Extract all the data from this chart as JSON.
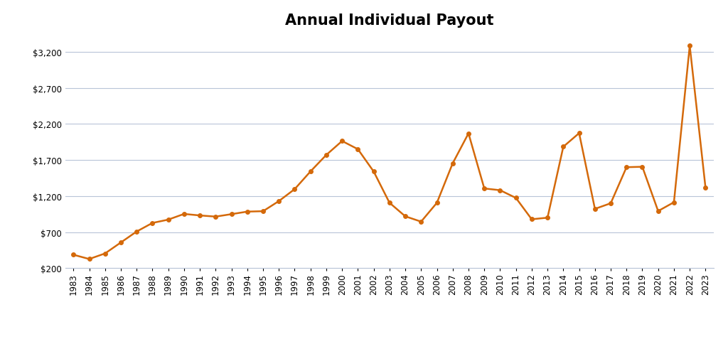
{
  "title": "Annual Individual Payout",
  "years": [
    1983,
    1984,
    1985,
    1986,
    1987,
    1988,
    1989,
    1990,
    1991,
    1992,
    1993,
    1994,
    1995,
    1996,
    1997,
    1998,
    1999,
    2000,
    2001,
    2002,
    2003,
    2004,
    2005,
    2006,
    2007,
    2008,
    2009,
    2010,
    2011,
    2012,
    2013,
    2014,
    2015,
    2016,
    2017,
    2018,
    2019,
    2020,
    2021,
    2022,
    2023
  ],
  "values": [
    386,
    327,
    404,
    556,
    708,
    827,
    873,
    952,
    931,
    915,
    949,
    984,
    990,
    1130,
    1296,
    1541,
    1770,
    1963,
    1850,
    1540,
    1107,
    919,
    845,
    1106,
    1654,
    2069,
    1305,
    1281,
    1174,
    878,
    900,
    1884,
    2072,
    1022,
    1100,
    1600,
    1606,
    992,
    1114,
    3284,
    1312
  ],
  "line_color": "#D4690A",
  "marker": "o",
  "marker_size": 4,
  "line_width": 1.8,
  "background_color": "#ffffff",
  "grid_color": "#b8c4d8",
  "title_fontsize": 15,
  "tick_fontsize": 8.5,
  "ylim": [
    200,
    3450
  ],
  "yticks": [
    200,
    700,
    1200,
    1700,
    2200,
    2700,
    3200
  ],
  "ytick_labels": [
    "$200",
    "$700",
    "$1,200",
    "$1,700",
    "$2,200",
    "$2,700",
    "$3,200"
  ]
}
